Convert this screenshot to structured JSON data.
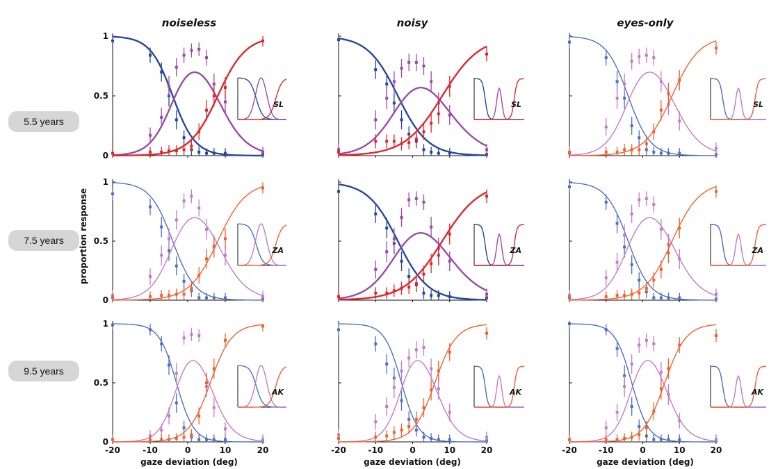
{
  "row_labels": [
    "5.5 years",
    "7.5 years",
    "9.5 years"
  ],
  "ylabel": "proportion response",
  "chart_data": {
    "type": "line",
    "columns": [
      "noiseless",
      "noisy",
      "eyes-only"
    ],
    "xlabel": "gaze deviation (deg)",
    "xlim": [
      -20,
      20
    ],
    "ylim": [
      0,
      1
    ],
    "x_ticks": [
      -20,
      -10,
      0,
      10,
      20
    ],
    "y_ticks": [
      0,
      0.5,
      1
    ],
    "x_tick_labels": [
      "-20",
      "-10",
      "0",
      "10",
      "20"
    ],
    "y_tick_labels": [
      "0",
      "0.5",
      "1"
    ],
    "colors": {
      "left": "#2447a0",
      "center": "#9a4aa8",
      "right": "#e0262b"
    },
    "x_points": [
      -20,
      -10,
      -7,
      -5,
      -3,
      -1,
      1,
      3,
      5,
      7,
      10,
      20
    ],
    "panels": [
      {
        "row": 0,
        "col": 0,
        "inset_label": "SL",
        "style": "bold",
        "left": [
          0.96,
          0.84,
          0.7,
          0.5,
          0.3,
          0.15,
          0.05,
          0.03,
          0.02,
          0.02,
          0.02,
          0.01
        ],
        "center": [
          0.02,
          0.17,
          0.32,
          0.58,
          0.74,
          0.84,
          0.88,
          0.89,
          0.82,
          0.6,
          0.45,
          0.03
        ],
        "right": [
          0.02,
          0.03,
          0.03,
          0.04,
          0.04,
          0.05,
          0.08,
          0.2,
          0.38,
          0.5,
          0.57,
          0.96
        ]
      },
      {
        "row": 0,
        "col": 1,
        "inset_label": "SL",
        "style": "bold",
        "left": [
          0.97,
          0.72,
          0.6,
          0.44,
          0.3,
          0.18,
          0.12,
          0.05,
          0.03,
          0.02,
          0.02,
          0.01
        ],
        "center": [
          0.05,
          0.3,
          0.48,
          0.62,
          0.73,
          0.78,
          0.78,
          0.75,
          0.62,
          0.44,
          0.34,
          0.05
        ],
        "right": [
          0.03,
          0.12,
          0.12,
          0.12,
          0.1,
          0.11,
          0.14,
          0.2,
          0.27,
          0.35,
          0.58,
          0.85
        ]
      },
      {
        "row": 0,
        "col": 2,
        "inset_label": "SL",
        "style": "light",
        "left": [
          0.95,
          0.82,
          0.62,
          0.48,
          0.25,
          0.15,
          0.05,
          0.03,
          0.02,
          0.02,
          0.02,
          0.01
        ],
        "center": [
          0.03,
          0.24,
          0.48,
          0.6,
          0.79,
          0.83,
          0.84,
          0.82,
          0.62,
          0.43,
          0.29,
          0.06
        ],
        "right": [
          0.02,
          0.03,
          0.03,
          0.05,
          0.05,
          0.05,
          0.1,
          0.2,
          0.38,
          0.52,
          0.63,
          0.9
        ]
      },
      {
        "row": 1,
        "col": 0,
        "inset_label": "ZA",
        "style": "light",
        "left": [
          0.9,
          0.79,
          0.62,
          0.42,
          0.29,
          0.16,
          0.08,
          0.02,
          0.02,
          0.02,
          0.02,
          0.01
        ],
        "center": [
          0.04,
          0.2,
          0.38,
          0.52,
          0.68,
          0.84,
          0.88,
          0.78,
          0.6,
          0.46,
          0.38,
          0.03
        ],
        "right": [
          0.02,
          0.03,
          0.04,
          0.04,
          0.05,
          0.05,
          0.1,
          0.21,
          0.35,
          0.45,
          0.52,
          0.95
        ]
      },
      {
        "row": 1,
        "col": 1,
        "inset_label": "ZA",
        "style": "bold",
        "left": [
          0.92,
          0.73,
          0.61,
          0.48,
          0.33,
          0.2,
          0.13,
          0.06,
          0.04,
          0.04,
          0.03,
          0.02
        ],
        "center": [
          0.03,
          0.26,
          0.41,
          0.52,
          0.7,
          0.85,
          0.86,
          0.83,
          0.62,
          0.44,
          0.33,
          0.05
        ],
        "right": [
          0.03,
          0.06,
          0.06,
          0.08,
          0.1,
          0.11,
          0.14,
          0.22,
          0.31,
          0.38,
          0.56,
          0.88
        ]
      },
      {
        "row": 1,
        "col": 2,
        "inset_label": "ZA",
        "style": "light",
        "left": [
          0.96,
          0.83,
          0.65,
          0.45,
          0.3,
          0.17,
          0.07,
          0.02,
          0.02,
          0.02,
          0.02,
          0.01
        ],
        "center": [
          0.04,
          0.19,
          0.32,
          0.55,
          0.73,
          0.85,
          0.86,
          0.81,
          0.6,
          0.47,
          0.35,
          0.05
        ],
        "right": [
          0.02,
          0.03,
          0.04,
          0.04,
          0.05,
          0.06,
          0.1,
          0.17,
          0.26,
          0.4,
          0.61,
          0.92
        ]
      },
      {
        "row": 2,
        "col": 0,
        "inset_label": "AK",
        "style": "light",
        "left": [
          0.99,
          0.95,
          0.83,
          0.65,
          0.33,
          0.12,
          0.04,
          0.02,
          0.02,
          0.02,
          0.02,
          0.01
        ],
        "center": [
          0.02,
          0.05,
          0.1,
          0.22,
          0.58,
          0.88,
          0.91,
          0.9,
          0.47,
          0.29,
          0.11,
          0.02
        ],
        "right": [
          0.02,
          0.02,
          0.02,
          0.02,
          0.03,
          0.04,
          0.06,
          0.22,
          0.5,
          0.62,
          0.86,
          0.98
        ]
      },
      {
        "row": 2,
        "col": 1,
        "inset_label": "AK",
        "style": "light",
        "left": [
          0.95,
          0.83,
          0.66,
          0.54,
          0.35,
          0.19,
          0.1,
          0.04,
          0.03,
          0.02,
          0.02,
          0.01
        ],
        "center": [
          0.06,
          0.17,
          0.3,
          0.46,
          0.6,
          0.71,
          0.78,
          0.8,
          0.62,
          0.45,
          0.25,
          0.04
        ],
        "right": [
          0.03,
          0.04,
          0.05,
          0.08,
          0.1,
          0.13,
          0.19,
          0.29,
          0.44,
          0.6,
          0.76,
          0.92
        ]
      },
      {
        "row": 2,
        "col": 2,
        "inset_label": "AK",
        "style": "light",
        "left": [
          1.0,
          0.95,
          0.79,
          0.56,
          0.3,
          0.13,
          0.05,
          0.02,
          0.02,
          0.02,
          0.02,
          0.01
        ],
        "center": [
          0.02,
          0.12,
          0.25,
          0.47,
          0.66,
          0.82,
          0.86,
          0.83,
          0.59,
          0.4,
          0.18,
          0.02
        ],
        "right": [
          0.02,
          0.02,
          0.02,
          0.03,
          0.04,
          0.06,
          0.12,
          0.26,
          0.45,
          0.62,
          0.82,
          0.9
        ]
      }
    ]
  }
}
